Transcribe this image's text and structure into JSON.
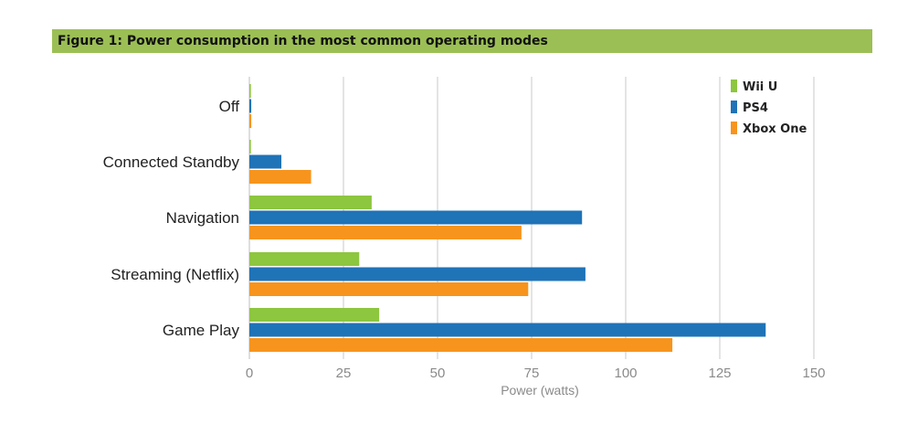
{
  "chart_data": {
    "type": "bar",
    "orientation": "horizontal",
    "title": "Figure 1: Power consumption in the most common operating modes",
    "xlabel": "Power (watts)",
    "ylabel": "",
    "xlim": [
      0,
      150
    ],
    "x_ticks": [
      0,
      25,
      50,
      75,
      100,
      125,
      150
    ],
    "grid": true,
    "legend_position": "top-right",
    "categories": [
      "Off",
      "Connected Standby",
      "Navigation",
      "Streaming (Netflix)",
      "Game Play"
    ],
    "series": [
      {
        "name": "Wii U",
        "color": "#8dc63f",
        "values": [
          0.4,
          0.4,
          32.5,
          29.2,
          34.5
        ]
      },
      {
        "name": "PS4",
        "color": "#1f73b7",
        "values": [
          0.5,
          8.5,
          88.4,
          89.3,
          137.2
        ]
      },
      {
        "name": "Xbox One",
        "color": "#f7941d",
        "values": [
          0.5,
          16.4,
          72.3,
          74.1,
          112.4
        ]
      }
    ]
  }
}
